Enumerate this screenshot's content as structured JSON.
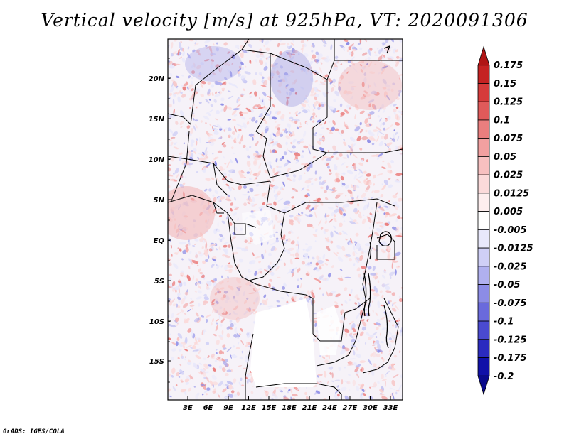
{
  "title": "Vertical velocity [m/s] at 925hPa, VT: 2020091306",
  "credit": "GrADS: IGES/COLA",
  "map": {
    "lat_labels": [
      "20N",
      "15N",
      "10N",
      "5N",
      "EQ",
      "5S",
      "10S",
      "15S"
    ],
    "lon_labels": [
      "3E",
      "6E",
      "9E",
      "12E",
      "15E",
      "18E",
      "21E",
      "24E",
      "27E",
      "30E",
      "33E"
    ]
  },
  "colorbar": {
    "labels": [
      "0.175",
      "0.15",
      "0.125",
      "0.1",
      "0.075",
      "0.05",
      "0.025",
      "0.0125",
      "0.005",
      "-0.005",
      "-0.0125",
      "-0.025",
      "-0.05",
      "-0.075",
      "-0.1",
      "-0.125",
      "-0.175",
      "-0.2"
    ],
    "colors": [
      "#b01515",
      "#c52222",
      "#d63b3b",
      "#e05a5a",
      "#ea7e7e",
      "#f2a0a0",
      "#f7c0c0",
      "#fbdada",
      "#fdeeee",
      "#ffffff",
      "#e8e8fb",
      "#cfcff6",
      "#b0b0ef",
      "#8c8ce6",
      "#6a6adc",
      "#4a4ad0",
      "#2b2bbf",
      "#1010a8",
      "#0a0a8c"
    ]
  }
}
